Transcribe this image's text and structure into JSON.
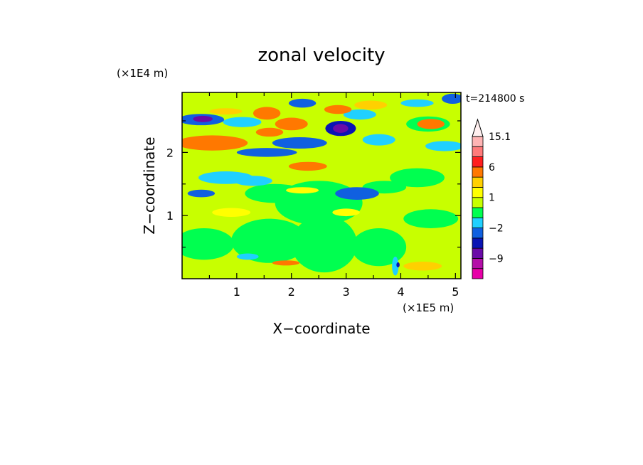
{
  "chart_data": {
    "type": "heatmap",
    "title": "zonal velocity",
    "xlabel": "X−coordinate",
    "ylabel": "Z−coordinate",
    "x_unit": "(×1E5 m)",
    "y_unit": "(×1E4 m)",
    "time_label": "t=214800 s",
    "xlim": [
      0,
      5.1
    ],
    "ylim": [
      0,
      2.95
    ],
    "x_ticks": [
      {
        "value": 1,
        "label": "1"
      },
      {
        "value": 2,
        "label": "2"
      },
      {
        "value": 3,
        "label": "3"
      },
      {
        "value": 4,
        "label": "4"
      },
      {
        "value": 5,
        "label": "5"
      }
    ],
    "y_ticks": [
      {
        "value": 1,
        "label": "1"
      },
      {
        "value": 2,
        "label": "2"
      }
    ],
    "colorbar": {
      "levels": [
        -15,
        -12,
        -9,
        -6,
        -3,
        -2,
        -1,
        0,
        1,
        2,
        3,
        6,
        9,
        12,
        15.1
      ],
      "colors": [
        "#e800a8",
        "#b40ea8",
        "#6a0aa8",
        "#0a14b4",
        "#1060e0",
        "#20d0ff",
        "#00ff50",
        "#c8ff00",
        "#ffff00",
        "#ffd000",
        "#ff7800",
        "#ff1e1e",
        "#ff7a7a",
        "#ffb4b4"
      ],
      "extend_top_color": "#fff0f0",
      "tick_labels": [
        {
          "value": 15.1,
          "label": "15.1"
        },
        {
          "value": 6,
          "label": "6"
        },
        {
          "value": 1,
          "label": "1"
        },
        {
          "value": -2,
          "label": "−2"
        },
        {
          "value": -9,
          "label": "−9"
        }
      ]
    },
    "field": {
      "background_value": 0.5,
      "blobs": [
        {
          "x": 0.35,
          "z": 2.52,
          "rx": 0.42,
          "rz": 0.09,
          "v": -2.5
        },
        {
          "x": 0.38,
          "z": 2.53,
          "rx": 0.18,
          "rz": 0.05,
          "v": -6.5
        },
        {
          "x": 0.55,
          "z": 2.15,
          "rx": 0.65,
          "rz": 0.12,
          "v": 4.2
        },
        {
          "x": 0.8,
          "z": 2.65,
          "rx": 0.3,
          "rz": 0.05,
          "v": 2.5
        },
        {
          "x": 1.1,
          "z": 2.48,
          "rx": 0.35,
          "rz": 0.08,
          "v": -1.5
        },
        {
          "x": 1.55,
          "z": 2.62,
          "rx": 0.25,
          "rz": 0.1,
          "v": 5.5
        },
        {
          "x": 1.6,
          "z": 2.32,
          "rx": 0.25,
          "rz": 0.07,
          "v": 3.5
        },
        {
          "x": 1.55,
          "z": 2.0,
          "rx": 0.55,
          "rz": 0.07,
          "v": -2.5
        },
        {
          "x": 2.2,
          "z": 2.78,
          "rx": 0.25,
          "rz": 0.07,
          "v": -2.5
        },
        {
          "x": 2.0,
          "z": 2.45,
          "rx": 0.3,
          "rz": 0.1,
          "v": 3.5
        },
        {
          "x": 2.15,
          "z": 2.15,
          "rx": 0.5,
          "rz": 0.09,
          "v": -2.5
        },
        {
          "x": 2.3,
          "z": 1.78,
          "rx": 0.35,
          "rz": 0.07,
          "v": 4.5
        },
        {
          "x": 2.9,
          "z": 2.38,
          "rx": 0.28,
          "rz": 0.12,
          "v": -3.5
        },
        {
          "x": 2.9,
          "z": 2.38,
          "rx": 0.14,
          "rz": 0.07,
          "v": -7.5
        },
        {
          "x": 2.85,
          "z": 2.68,
          "rx": 0.25,
          "rz": 0.07,
          "v": 3.5
        },
        {
          "x": 3.25,
          "z": 2.6,
          "rx": 0.3,
          "rz": 0.08,
          "v": -1.5
        },
        {
          "x": 3.6,
          "z": 2.2,
          "rx": 0.3,
          "rz": 0.09,
          "v": -1.5
        },
        {
          "x": 3.45,
          "z": 2.75,
          "rx": 0.3,
          "rz": 0.07,
          "v": 2.5
        },
        {
          "x": 4.3,
          "z": 2.78,
          "rx": 0.3,
          "rz": 0.06,
          "v": -1.5
        },
        {
          "x": 4.5,
          "z": 2.45,
          "rx": 0.4,
          "rz": 0.12,
          "v": -0.5
        },
        {
          "x": 4.55,
          "z": 2.45,
          "rx": 0.25,
          "rz": 0.08,
          "v": 3.5
        },
        {
          "x": 4.95,
          "z": 2.85,
          "rx": 0.2,
          "rz": 0.08,
          "v": -2.5
        },
        {
          "x": 4.8,
          "z": 2.1,
          "rx": 0.35,
          "rz": 0.08,
          "v": -1.5
        },
        {
          "x": 0.35,
          "z": 1.35,
          "rx": 0.25,
          "rz": 0.06,
          "v": -2.5
        },
        {
          "x": 0.8,
          "z": 1.6,
          "rx": 0.5,
          "rz": 0.1,
          "v": -1.5
        },
        {
          "x": 1.3,
          "z": 1.55,
          "rx": 0.35,
          "rz": 0.08,
          "v": -1.5
        },
        {
          "x": 1.7,
          "z": 1.35,
          "rx": 0.55,
          "rz": 0.15,
          "v": -0.5
        },
        {
          "x": 2.5,
          "z": 1.2,
          "rx": 0.8,
          "rz": 0.35,
          "v": -0.5
        },
        {
          "x": 3.2,
          "z": 1.35,
          "rx": 0.4,
          "rz": 0.1,
          "v": -2.5
        },
        {
          "x": 3.7,
          "z": 1.45,
          "rx": 0.4,
          "rz": 0.1,
          "v": -0.5
        },
        {
          "x": 4.3,
          "z": 1.6,
          "rx": 0.5,
          "rz": 0.15,
          "v": -0.5
        },
        {
          "x": 4.55,
          "z": 0.95,
          "rx": 0.5,
          "rz": 0.15,
          "v": -0.5
        },
        {
          "x": 0.4,
          "z": 0.55,
          "rx": 0.55,
          "rz": 0.25,
          "v": -0.5
        },
        {
          "x": 1.6,
          "z": 0.6,
          "rx": 0.7,
          "rz": 0.35,
          "v": -0.5
        },
        {
          "x": 2.6,
          "z": 0.55,
          "rx": 0.6,
          "rz": 0.45,
          "v": -0.5
        },
        {
          "x": 3.6,
          "z": 0.5,
          "rx": 0.5,
          "rz": 0.3,
          "v": -0.5
        },
        {
          "x": 1.9,
          "z": 0.25,
          "rx": 0.25,
          "rz": 0.04,
          "v": 3.5
        },
        {
          "x": 3.9,
          "z": 0.2,
          "rx": 0.06,
          "rz": 0.15,
          "v": -1.5
        },
        {
          "x": 3.95,
          "z": 0.22,
          "rx": 0.03,
          "rz": 0.04,
          "v": -4.5
        },
        {
          "x": 4.4,
          "z": 0.2,
          "rx": 0.35,
          "rz": 0.07,
          "v": 2.5
        },
        {
          "x": 1.2,
          "z": 0.35,
          "rx": 0.2,
          "rz": 0.05,
          "v": -1.5
        },
        {
          "x": 0.9,
          "z": 1.05,
          "rx": 0.35,
          "rz": 0.07,
          "v": 1.5
        },
        {
          "x": 2.2,
          "z": 1.4,
          "rx": 0.3,
          "rz": 0.05,
          "v": 1.5
        },
        {
          "x": 3.0,
          "z": 1.05,
          "rx": 0.25,
          "rz": 0.06,
          "v": 1.5
        }
      ]
    }
  }
}
